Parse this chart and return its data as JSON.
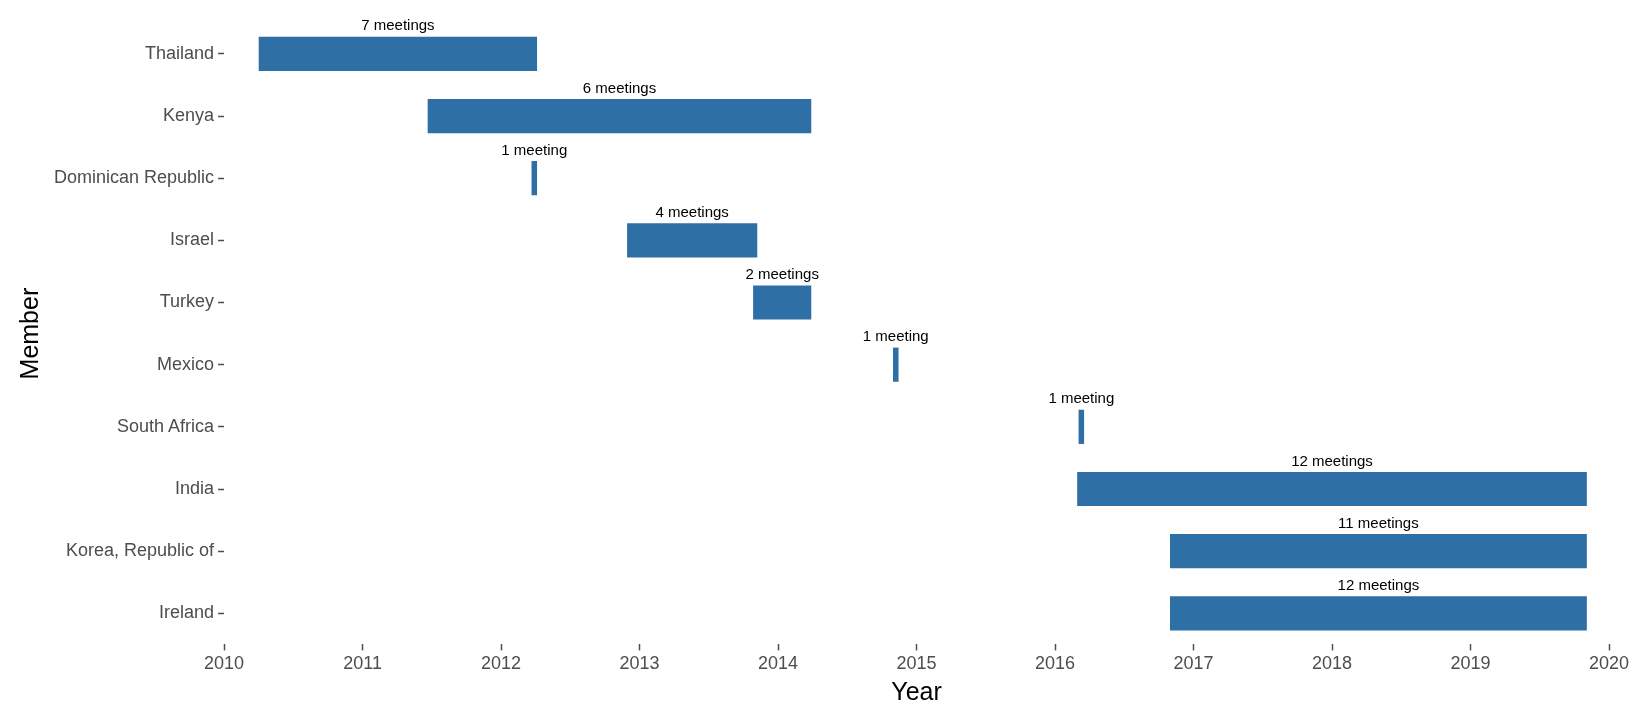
{
  "chart_data": {
    "type": "bar",
    "orientation": "horizontal",
    "xlabel": "Year",
    "ylabel": "Member",
    "categories": [
      "Thailand",
      "Kenya",
      "Dominican Republic",
      "Israel",
      "Turkey",
      "Mexico",
      "South Africa",
      "India",
      "Korea, Republic of",
      "Ireland"
    ],
    "base": [
      2010.25,
      2011.47,
      2012.22,
      2012.91,
      2013.82,
      2014.83,
      2016.17,
      2016.16,
      2016.83,
      2016.83
    ],
    "values": [
      2.01,
      2.77,
      0.04,
      0.94,
      0.42,
      0.04,
      0.04,
      3.68,
      3.01,
      3.01
    ],
    "color": "#2e6fa6",
    "annotations": [
      "7 meetings",
      "6 meetings",
      "1 meeting",
      "4 meetings",
      "2 meetings",
      "1 meeting",
      "1 meeting",
      "12 meetings",
      "11 meetings",
      "12 meetings"
    ],
    "xlim": [
      2010,
      2020
    ],
    "xticks": [
      2010,
      2011,
      2012,
      2013,
      2014,
      2015,
      2016,
      2017,
      2018,
      2019,
      2020
    ],
    "grid": false,
    "legend": false
  }
}
